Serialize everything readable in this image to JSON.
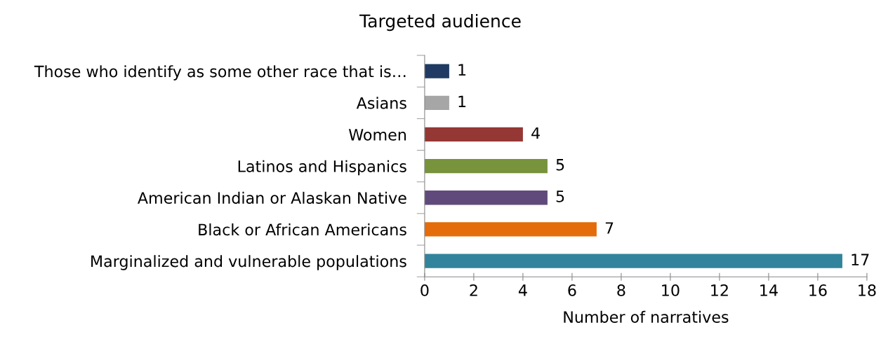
{
  "chart_data": {
    "type": "bar",
    "orientation": "horizontal",
    "title": "Targeted audience",
    "xlabel": "Number of narratives",
    "categories": [
      "Those who identify as some other race that is…",
      "Asians",
      "Women",
      "Latinos and Hispanics",
      "American Indian or Alaskan Native",
      "Black or African Americans",
      "Marginalized and vulnerable populations"
    ],
    "values": [
      1,
      1,
      4,
      5,
      5,
      7,
      17
    ],
    "colors": [
      "#1f3b63",
      "#a6a6a6",
      "#953735",
      "#77933c",
      "#604a7b",
      "#e46c0a",
      "#31849b"
    ],
    "xlim": [
      0,
      18
    ],
    "xticks": [
      0,
      2,
      4,
      6,
      8,
      10,
      12,
      14,
      16,
      18
    ],
    "grid": false,
    "data_labels": true
  }
}
